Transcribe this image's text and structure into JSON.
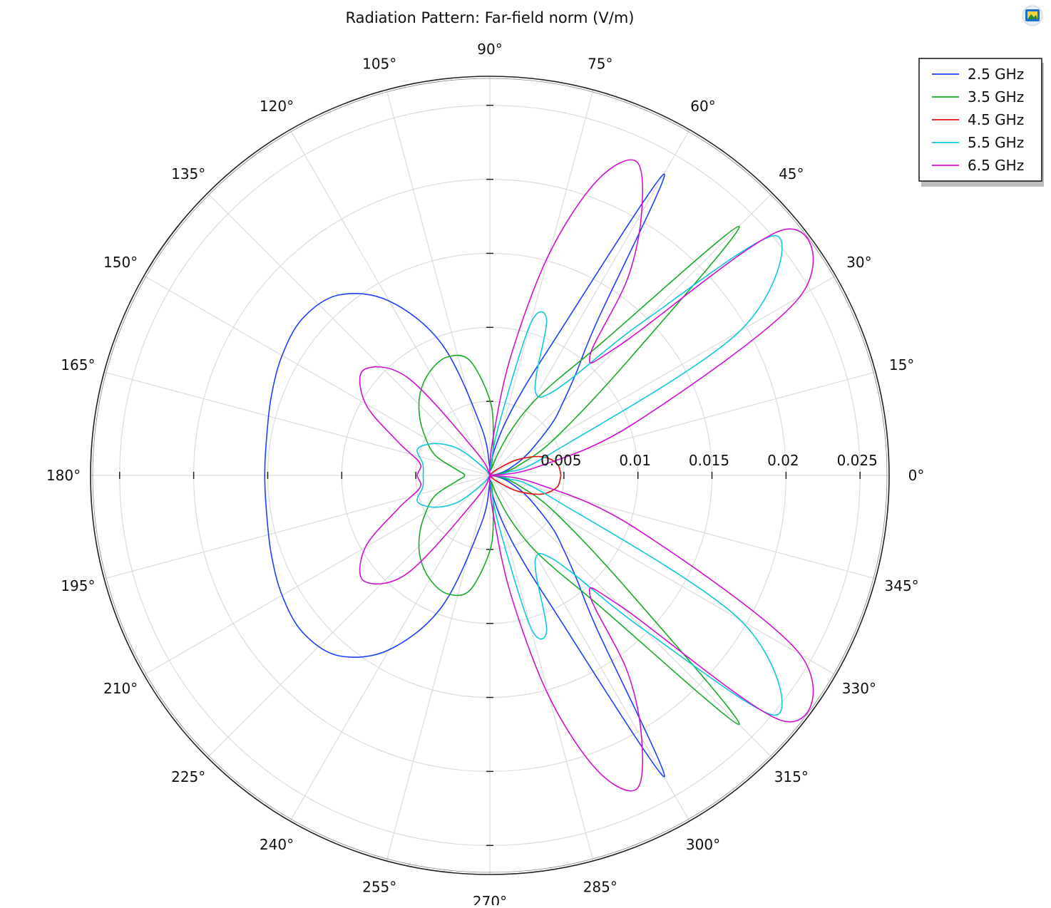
{
  "chart_data": {
    "type": "polar-line",
    "title": "Radiation Pattern: Far-field norm (V/m)",
    "angle_unit": "deg",
    "angle_ticks": [
      0,
      15,
      30,
      45,
      60,
      75,
      90,
      105,
      120,
      135,
      150,
      165,
      180,
      195,
      210,
      225,
      240,
      255,
      270,
      285,
      300,
      315,
      330,
      345
    ],
    "angle_tick_labels": [
      "0°",
      "15°",
      "30°",
      "45°",
      "60°",
      "75°",
      "90°",
      "105°",
      "120°",
      "135°",
      "150°",
      "165°",
      "180°",
      "195°",
      "210°",
      "225°",
      "240°",
      "255°",
      "270°",
      "285°",
      "300°",
      "315°",
      "330°",
      "345°"
    ],
    "radial_ticks": [
      0.005,
      0.01,
      0.015,
      0.02,
      0.025
    ],
    "radial_tick_labels": [
      "0.005",
      "0.01",
      "0.015",
      "0.02",
      "0.025"
    ],
    "radial_range": [
      0,
      0.026
    ],
    "grid": true,
    "legend_position": "top-right",
    "theta": [
      0,
      10,
      20,
      30,
      40,
      45,
      50,
      55,
      60,
      65,
      70,
      75,
      80,
      85,
      90,
      100,
      110,
      120,
      130,
      140,
      150,
      160,
      170,
      180
    ],
    "series": [
      {
        "name": "2.5 GHz",
        "color": "#1f3fff",
        "r": [
          0.0,
          0.0006,
          0.0015,
          0.003,
          0.0055,
          0.007,
          0.0091,
          0.0125,
          0.0235,
          0.0095,
          0.0055,
          0.0032,
          0.0017,
          0.0008,
          0.0005,
          0.0033,
          0.0094,
          0.0136,
          0.0159,
          0.0165,
          0.0162,
          0.0157,
          0.0153,
          0.0152
        ]
      },
      {
        "name": "3.5 GHz",
        "color": "#1aaa2a",
        "r": [
          0.0,
          0.0008,
          0.0022,
          0.0052,
          0.0125,
          0.0238,
          0.0115,
          0.0078,
          0.0055,
          0.0033,
          0.0015,
          0.0005,
          0.0008,
          0.0027,
          0.0051,
          0.0079,
          0.0085,
          0.0081,
          0.0073,
          0.0062,
          0.005,
          0.0039,
          0.0023,
          0.0017
        ]
      },
      {
        "name": "4.5 GHz",
        "color": "#e01010",
        "r": [
          0.0048,
          0.0046,
          0.0037,
          0.0021,
          0.0006,
          0.0001,
          0.0,
          0.0,
          0.0,
          0.0,
          0.0,
          0.0,
          0.0,
          0.0,
          0.0,
          0.0,
          0.0,
          0.0,
          0.0,
          0.0,
          0.0,
          0.0,
          0.0,
          0.0
        ]
      },
      {
        "name": "5.5 GHz",
        "color": "#10c8d8",
        "r": [
          0.0,
          0.0012,
          0.0045,
          0.0195,
          0.0252,
          0.0148,
          0.0085,
          0.0066,
          0.0063,
          0.0074,
          0.0112,
          0.0106,
          0.0034,
          0.0006,
          0.0006,
          0.0,
          0.0,
          0.0,
          0.0008,
          0.0028,
          0.0043,
          0.0052,
          0.0046,
          0.0045
        ]
      },
      {
        "name": "6.5 GHz",
        "color": "#d010d0",
        "r": [
          0.0,
          0.0032,
          0.0105,
          0.0242,
          0.0258,
          0.0125,
          0.0105,
          0.0162,
          0.0205,
          0.0234,
          0.0212,
          0.0155,
          0.0082,
          0.0026,
          0.0005,
          0.0,
          0.0,
          0.0018,
          0.0086,
          0.0111,
          0.0097,
          0.0066,
          0.0048,
          0.0049
        ]
      }
    ]
  },
  "toolbar": {
    "icon": "export-image-icon"
  }
}
